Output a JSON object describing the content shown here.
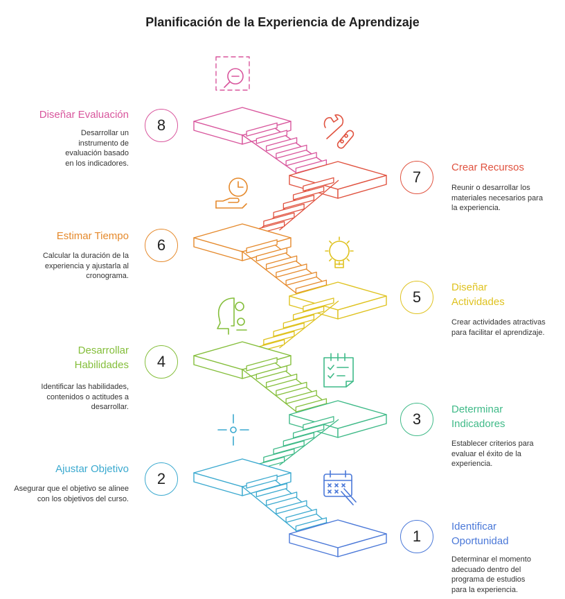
{
  "title": "Planificación de la Experiencia de Aprendizaje",
  "steps": [
    {
      "number": "1",
      "title": "Identificar Oportunidad",
      "description": "Determinar el momento adecuado dentro del programa de estudios para la experiencia.",
      "color": "#4a78d8",
      "icon": "calendar-pen-icon"
    },
    {
      "number": "2",
      "title": "Ajustar Objetivo",
      "description": "Asegurar que el objetivo se alinee con los objetivos del curso.",
      "color": "#3aa9cf",
      "icon": "target-crosshair-icon"
    },
    {
      "number": "3",
      "title": "Determinar Indicadores",
      "description": "Establecer criterios para evaluar el éxito de la experiencia.",
      "color": "#3fba88",
      "icon": "checklist-icon"
    },
    {
      "number": "4",
      "title": "Desarrollar Habilidades",
      "description": "Identificar las habilidades, contenidos o actitudes a desarrollar.",
      "color": "#84be3a",
      "icon": "head-gears-icon"
    },
    {
      "number": "5",
      "title": "Diseñar Actividades",
      "description": "Crear actividades atractivas para facilitar el aprendizaje.",
      "color": "#dfc21f",
      "icon": "lightbulb-gear-icon"
    },
    {
      "number": "6",
      "title": "Estimar Tiempo",
      "description": "Calcular la duración de la experiencia y ajustarla al cronograma.",
      "color": "#e5892b",
      "icon": "clock-hand-icon"
    },
    {
      "number": "7",
      "title": "Crear Recursos",
      "description": "Reunir o desarrollar los materiales necesarios para la experiencia.",
      "color": "#e0523f",
      "icon": "tools-icon"
    },
    {
      "number": "8",
      "title": "Diseñar Evaluación",
      "description": "Desarrollar un instrumento de evaluación basado en los indicadores.",
      "color": "#d8559c",
      "icon": "search-evaluation-icon"
    }
  ]
}
